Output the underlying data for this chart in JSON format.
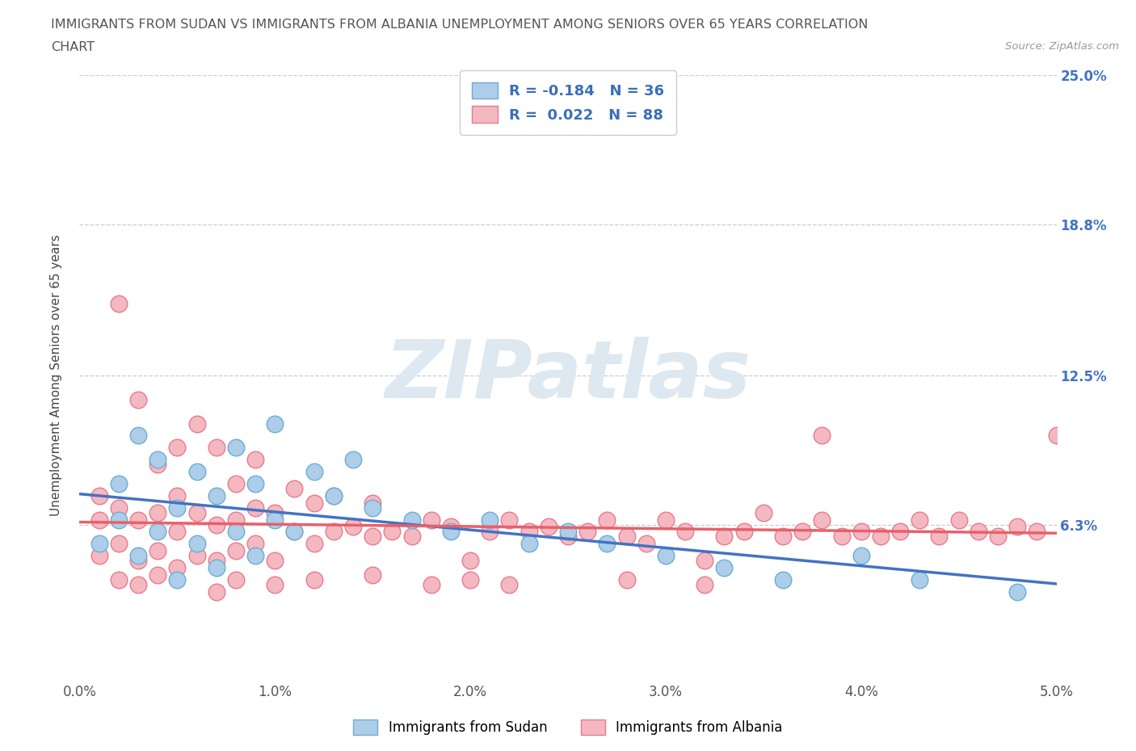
{
  "title_line1": "IMMIGRANTS FROM SUDAN VS IMMIGRANTS FROM ALBANIA UNEMPLOYMENT AMONG SENIORS OVER 65 YEARS CORRELATION",
  "title_line2": "CHART",
  "source": "Source: ZipAtlas.com",
  "ylabel": "Unemployment Among Seniors over 65 years",
  "xlim": [
    0.0,
    0.05
  ],
  "ylim": [
    0.0,
    0.25
  ],
  "yticks": [
    0.063,
    0.125,
    0.188,
    0.25
  ],
  "ytick_labels": [
    "6.3%",
    "12.5%",
    "18.8%",
    "25.0%"
  ],
  "xticks": [
    0.0,
    0.01,
    0.02,
    0.03,
    0.04,
    0.05
  ],
  "xtick_labels": [
    "0.0%",
    "1.0%",
    "2.0%",
    "3.0%",
    "4.0%",
    "5.0%"
  ],
  "watermark": "ZIPatlas",
  "sudan_color": "#aecde8",
  "albania_color": "#f4b8c1",
  "sudan_edge": "#6aaed6",
  "albania_edge": "#e87a8d",
  "sudan_trend_color": "#4472c4",
  "albania_trend_color": "#e8606a",
  "grid_color": "#cccccc",
  "R_sudan": -0.184,
  "N_sudan": 36,
  "R_albania": 0.022,
  "N_albania": 88,
  "legend_label_sudan": "Immigrants from Sudan",
  "legend_label_albania": "Immigrants from Albania",
  "sudan_x": [
    0.001,
    0.002,
    0.002,
    0.003,
    0.003,
    0.004,
    0.004,
    0.005,
    0.005,
    0.006,
    0.006,
    0.007,
    0.007,
    0.008,
    0.008,
    0.009,
    0.009,
    0.01,
    0.01,
    0.011,
    0.012,
    0.013,
    0.014,
    0.015,
    0.017,
    0.019,
    0.021,
    0.023,
    0.025,
    0.027,
    0.03,
    0.033,
    0.036,
    0.04,
    0.043,
    0.048
  ],
  "sudan_y": [
    0.055,
    0.065,
    0.08,
    0.05,
    0.1,
    0.06,
    0.09,
    0.04,
    0.07,
    0.055,
    0.085,
    0.045,
    0.075,
    0.06,
    0.095,
    0.05,
    0.08,
    0.065,
    0.105,
    0.06,
    0.085,
    0.075,
    0.09,
    0.07,
    0.065,
    0.06,
    0.065,
    0.055,
    0.06,
    0.055,
    0.05,
    0.045,
    0.04,
    0.05,
    0.04,
    0.035
  ],
  "albania_x": [
    0.001,
    0.001,
    0.001,
    0.002,
    0.002,
    0.002,
    0.003,
    0.003,
    0.003,
    0.004,
    0.004,
    0.004,
    0.005,
    0.005,
    0.005,
    0.005,
    0.006,
    0.006,
    0.006,
    0.007,
    0.007,
    0.007,
    0.008,
    0.008,
    0.008,
    0.009,
    0.009,
    0.009,
    0.01,
    0.01,
    0.011,
    0.011,
    0.012,
    0.012,
    0.013,
    0.013,
    0.014,
    0.015,
    0.015,
    0.016,
    0.017,
    0.018,
    0.019,
    0.02,
    0.021,
    0.022,
    0.023,
    0.024,
    0.025,
    0.026,
    0.027,
    0.028,
    0.029,
    0.03,
    0.031,
    0.032,
    0.033,
    0.034,
    0.035,
    0.036,
    0.037,
    0.038,
    0.039,
    0.04,
    0.041,
    0.042,
    0.043,
    0.044,
    0.045,
    0.046,
    0.047,
    0.048,
    0.049,
    0.05,
    0.002,
    0.003,
    0.004,
    0.007,
    0.008,
    0.01,
    0.012,
    0.015,
    0.018,
    0.02,
    0.022,
    0.028,
    0.032,
    0.038
  ],
  "albania_y": [
    0.05,
    0.065,
    0.075,
    0.055,
    0.07,
    0.155,
    0.048,
    0.065,
    0.115,
    0.052,
    0.068,
    0.088,
    0.045,
    0.06,
    0.075,
    0.095,
    0.05,
    0.068,
    0.105,
    0.048,
    0.063,
    0.095,
    0.052,
    0.065,
    0.08,
    0.055,
    0.07,
    0.09,
    0.048,
    0.068,
    0.06,
    0.078,
    0.055,
    0.072,
    0.06,
    0.075,
    0.062,
    0.058,
    0.072,
    0.06,
    0.058,
    0.065,
    0.062,
    0.048,
    0.06,
    0.065,
    0.06,
    0.062,
    0.058,
    0.06,
    0.065,
    0.058,
    0.055,
    0.065,
    0.06,
    0.048,
    0.058,
    0.06,
    0.068,
    0.058,
    0.06,
    0.065,
    0.058,
    0.06,
    0.058,
    0.06,
    0.065,
    0.058,
    0.065,
    0.06,
    0.058,
    0.062,
    0.06,
    0.1,
    0.04,
    0.038,
    0.042,
    0.035,
    0.04,
    0.038,
    0.04,
    0.042,
    0.038,
    0.04,
    0.038,
    0.04,
    0.038,
    0.1
  ]
}
